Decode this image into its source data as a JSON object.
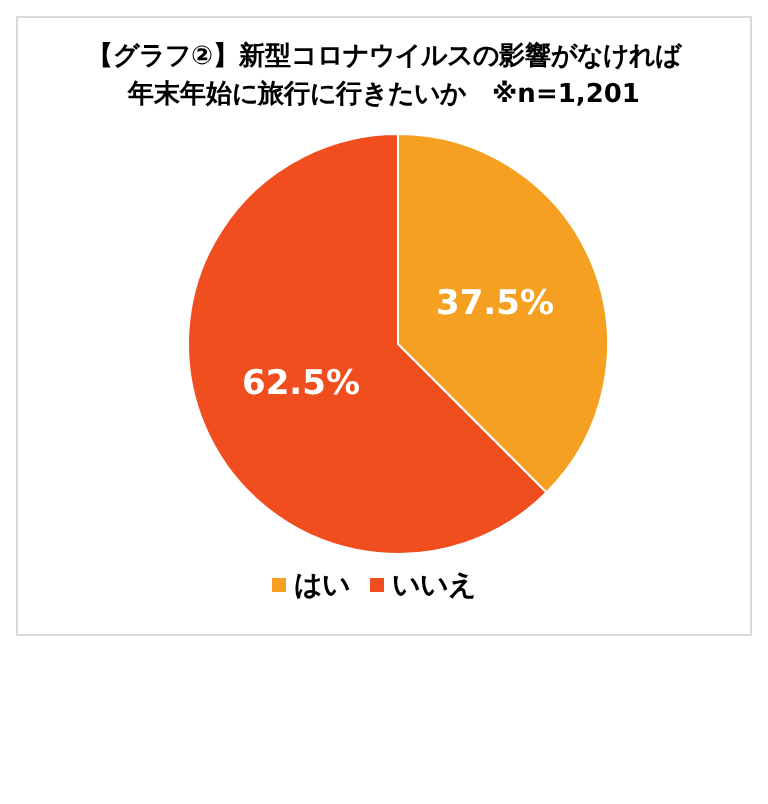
{
  "chart_data": {
    "type": "pie",
    "title": "【グラフ②】新型コロナウイルスの影響がなければ年末年始に旅行に行きたいか　※n=1,201",
    "categories": [
      "はい",
      "いいえ"
    ],
    "values": [
      37.5,
      62.5
    ],
    "colors": [
      "#f5a020",
      "#f04e1e"
    ],
    "value_labels": [
      "37.5%",
      "62.5%"
    ],
    "legend": "bottom"
  }
}
